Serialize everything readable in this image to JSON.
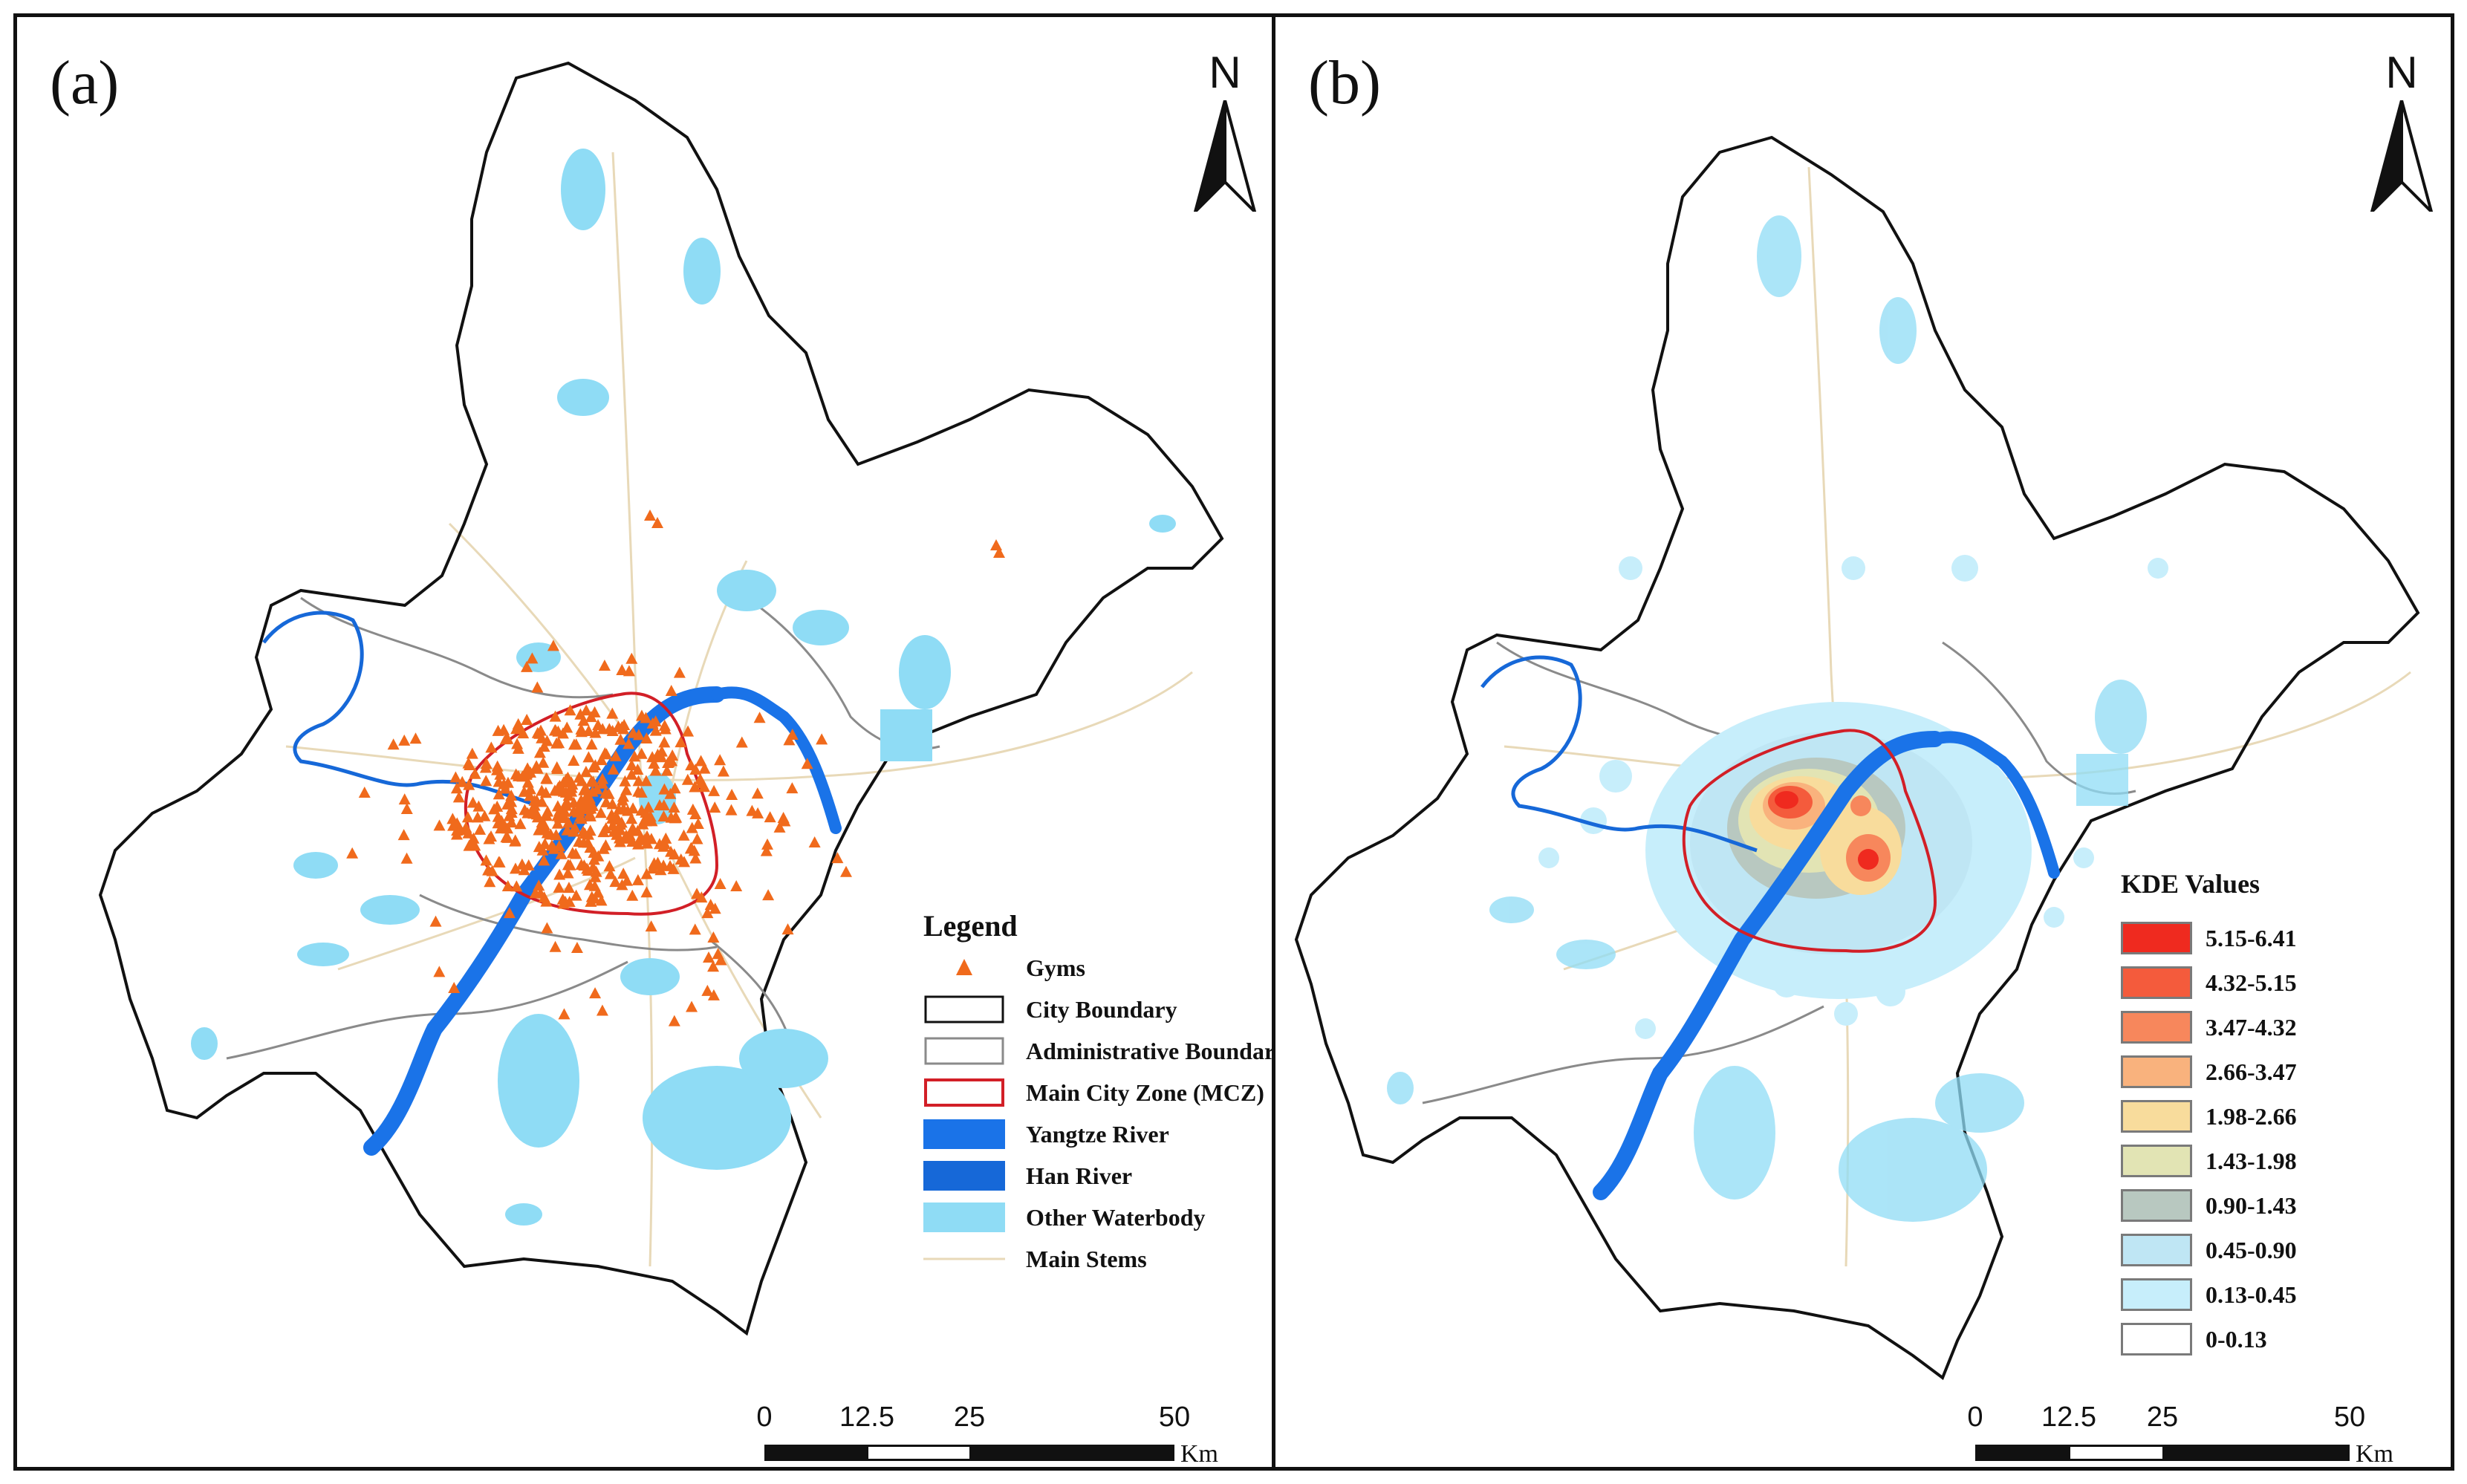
{
  "panels": {
    "a": {
      "label": "(a)",
      "north": "N"
    },
    "b": {
      "label": "(b)",
      "north": "N"
    }
  },
  "legend_a": {
    "title": "Legend",
    "items": [
      {
        "label": "Gyms",
        "symbol": "triangle",
        "color": "#f06a1c"
      },
      {
        "label": "City Boundary",
        "symbol": "box",
        "color": "#111111"
      },
      {
        "label": "Administrative Boundary",
        "symbol": "box",
        "color": "#8a8a8a"
      },
      {
        "label": "Main City Zone (MCZ)",
        "symbol": "box",
        "color": "#d21f27"
      },
      {
        "label": "Yangtze River",
        "symbol": "fill",
        "color": "#1a73e8"
      },
      {
        "label": "Han River",
        "symbol": "fill",
        "color": "#1668d8"
      },
      {
        "label": "Other Waterbody",
        "symbol": "fill",
        "color": "#8fdcf5"
      },
      {
        "label": "Main Stems",
        "symbol": "line",
        "color": "#e8d9b8"
      }
    ]
  },
  "legend_b": {
    "title": "KDE Values",
    "items": [
      {
        "label": "5.15-6.41",
        "color": "#ef2a1f"
      },
      {
        "label": "4.32-5.15",
        "color": "#f45b3c"
      },
      {
        "label": "3.47-4.32",
        "color": "#f7875c"
      },
      {
        "label": "2.66-3.47",
        "color": "#f9b27d"
      },
      {
        "label": "1.98-2.66",
        "color": "#f8dc9c"
      },
      {
        "label": "1.43-1.98",
        "color": "#e2e4b4"
      },
      {
        "label": "0.90-1.43",
        "color": "#b8c8c0"
      },
      {
        "label": "0.45-0.90",
        "color": "#bfe6f4"
      },
      {
        "label": "0.13-0.45",
        "color": "#c7eefb"
      },
      {
        "label": "0-0.13",
        "color": "#ffffff"
      }
    ]
  },
  "scalebar": {
    "ticks": [
      "0",
      "12.5",
      "25",
      "50"
    ],
    "unit": "Km"
  },
  "colors": {
    "city_boundary": "#111111",
    "admin_boundary": "#8a8a8a",
    "mcz": "#d21f27",
    "river": "#1a73e8",
    "waterbody": "#8fdcf5",
    "stems": "#e8d9b8",
    "gym": "#f06a1c"
  }
}
